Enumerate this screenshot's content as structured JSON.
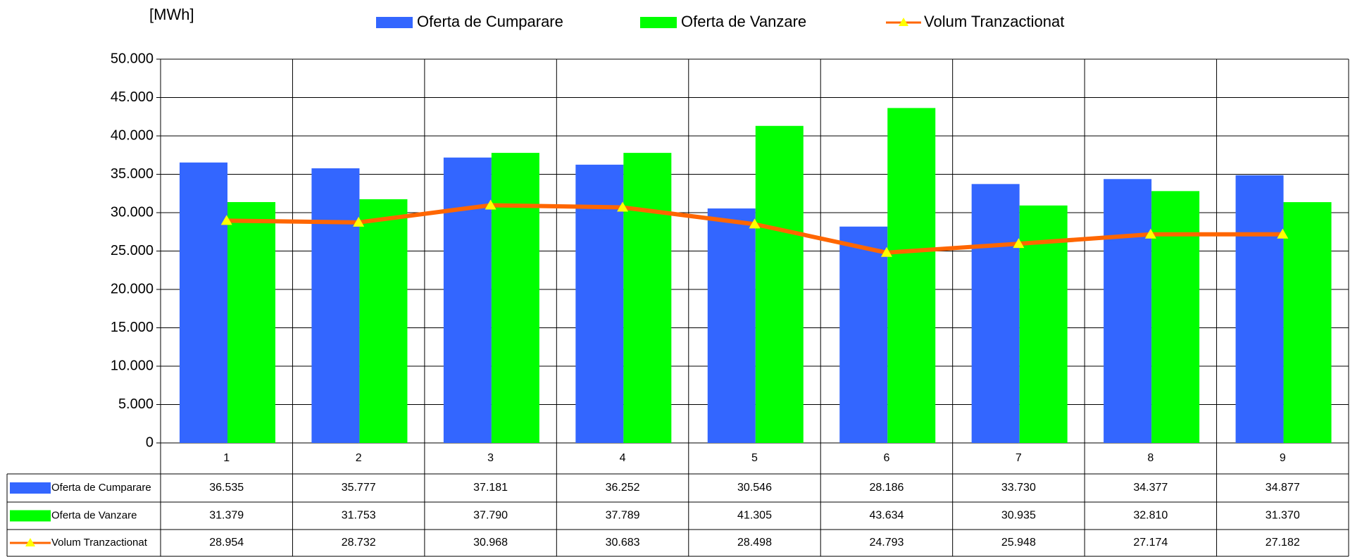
{
  "chart_data": {
    "type": "bar",
    "y_label": "[MWh]",
    "categories": [
      "1",
      "2",
      "3",
      "4",
      "5",
      "6",
      "7",
      "8",
      "9"
    ],
    "series": [
      {
        "name": "Oferta de Cumparare",
        "type": "bar",
        "color": "#3366ff",
        "values": [
          36535,
          35777,
          37181,
          36252,
          30546,
          28186,
          33730,
          34377,
          34877
        ],
        "value_labels": [
          "36.535",
          "35.777",
          "37.181",
          "36.252",
          "30.546",
          "28.186",
          "33.730",
          "34.377",
          "34.877"
        ]
      },
      {
        "name": "Oferta de Vanzare",
        "type": "bar",
        "color": "#00ff00",
        "values": [
          31379,
          31753,
          37790,
          37789,
          41305,
          43634,
          30935,
          32810,
          31370
        ],
        "value_labels": [
          "31.379",
          "31.753",
          "37.790",
          "37.789",
          "41.305",
          "43.634",
          "30.935",
          "32.810",
          "31.370"
        ]
      },
      {
        "name": "Volum Tranzactionat",
        "type": "line",
        "color": "#ff6600",
        "marker_color": "#ffff00",
        "values": [
          28954,
          28732,
          30968,
          30683,
          28498,
          24793,
          25948,
          27174,
          27182
        ],
        "value_labels": [
          "28.954",
          "28.732",
          "30.968",
          "30.683",
          "28.498",
          "24.793",
          "25.948",
          "27.174",
          "27.182"
        ]
      }
    ],
    "ylim": [
      0,
      50000
    ],
    "yticks": [
      0,
      {
        "value": 5000,
        "label": "5.000"
      },
      {
        "value": 10000,
        "label": "10.000"
      },
      {
        "value": 15000,
        "label": "15.000"
      },
      {
        "value": 20000,
        "label": "20.000"
      },
      {
        "value": 25000,
        "label": "25.000"
      },
      {
        "value": 30000,
        "label": "30.000"
      },
      {
        "value": 35000,
        "label": "35.000"
      },
      {
        "value": 40000,
        "label": "40.000"
      },
      {
        "value": 45000,
        "label": "45.000"
      },
      {
        "value": 50000,
        "label": "50.000"
      }
    ],
    "grid": true,
    "legend": "top",
    "data_table": true
  }
}
